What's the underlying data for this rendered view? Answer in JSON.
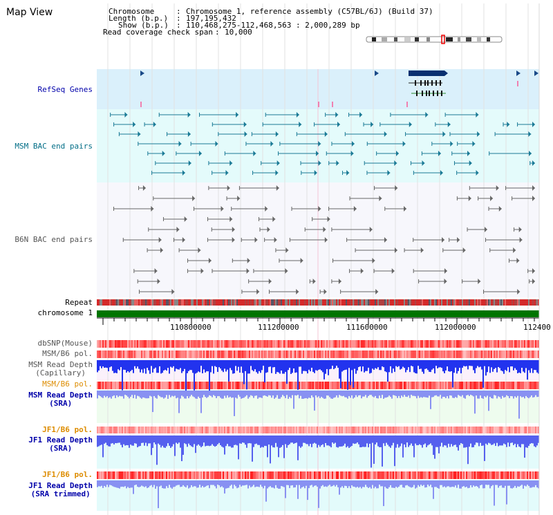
{
  "view_title": "Map View",
  "info": {
    "chromosome_label": "Chromosome",
    "chromosome_value": "Chromosome 1, reference assembly (C57BL/6J) (Build 37)",
    "length_label": "Length (b.p.)",
    "length_value": "197,195,432",
    "show_label": "Show (b.p.)",
    "show_value": "110,468,275-112,468,563 : 2,000,289 bp",
    "coverage_label": "Read coverage check span",
    "coverage_value": "10,000"
  },
  "tracks": {
    "refseq": "RefSeq Genes",
    "msm_bac": "MSM BAC end pairs",
    "b6n_bac": "B6N BAC end pairs",
    "repeat": "Repeat",
    "chromosome": "chromosome 1",
    "dbsnp": "dbSNP(Mouse)",
    "msm_b6_pol_1": "MSM/B6 pol.",
    "msm_depth_cap_1": "MSM Read Depth",
    "msm_depth_cap_2": "(Capillary)",
    "msm_b6_pol_2": "MSM/B6 pol.",
    "msm_depth_sra_1": "MSM Read Depth",
    "msm_depth_sra_2": "(SRA)",
    "jf1_b6_pol_1": "JF1/B6 pol.",
    "jf1_depth_sra_1": "JF1 Read Depth",
    "jf1_depth_sra_2": "(SRA)",
    "jf1_b6_pol_2": "JF1/B6 pol.",
    "jf1_depth_trim_1": "JF1 Read Depth",
    "jf1_depth_trim_2": "(SRA trimmed)"
  },
  "axis_ticks": [
    "110800000",
    "111200000",
    "111600000",
    "112000000",
    "112400"
  ],
  "colors": {
    "refseq_bg": "#daf0fb",
    "msm_bg": "#e4fbfb",
    "b6n_bg": "#f7f7fc",
    "chromosome_bar": "#007400",
    "label_blue": "#0000aa",
    "label_teal": "#006d86",
    "label_orange": "#dd8c00",
    "label_gray": "#555555",
    "depth_capillary": "#2233ee",
    "depth_sra": "#8891f2"
  }
}
